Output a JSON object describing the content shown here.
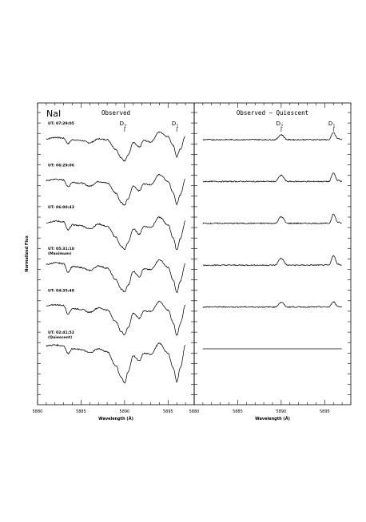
{
  "y_axis_label": "Normalized Flux",
  "x_axis_label": "Wavelength (Å)",
  "chart_data": [
    {
      "type": "line",
      "panel": "left",
      "title": "Observed",
      "element_label": "NaI",
      "xlabel": "Wavelength (Å)",
      "ylabel": "Normalized Flux",
      "xlim": [
        5880,
        5898
      ],
      "xticks": [
        "5880",
        "5885",
        "5890",
        "5895"
      ],
      "line_markers": [
        {
          "label": "D",
          "sub": "2",
          "x": 5890.0
        },
        {
          "label": "D",
          "sub": "1",
          "x": 5896.0
        }
      ],
      "series": [
        {
          "label": "UT: 07:29:05",
          "label2": "",
          "offset": 5,
          "x": [
            5881.0,
            5882.0,
            5883.0,
            5883.5,
            5884.0,
            5885.0,
            5886.0,
            5887.0,
            5888.0,
            5889.0,
            5889.6,
            5890.0,
            5890.4,
            5891.0,
            5891.7,
            5892.2,
            5893.0,
            5894.0,
            5895.0,
            5895.6,
            5896.0,
            5896.4,
            5897.0
          ],
          "y": [
            0.72,
            0.76,
            0.74,
            0.6,
            0.7,
            0.68,
            0.62,
            0.72,
            0.7,
            0.45,
            0.22,
            0.15,
            0.3,
            0.62,
            0.5,
            0.68,
            0.64,
            0.9,
            0.78,
            0.55,
            0.25,
            0.45,
            0.8
          ]
        },
        {
          "label": "UT: 06:29:06",
          "label2": "",
          "offset": 4,
          "x": [
            5881.0,
            5882.0,
            5883.0,
            5883.5,
            5884.0,
            5885.0,
            5886.0,
            5887.0,
            5888.0,
            5889.0,
            5889.6,
            5890.0,
            5890.4,
            5891.0,
            5891.7,
            5892.2,
            5893.0,
            5894.0,
            5895.0,
            5895.6,
            5896.0,
            5896.4,
            5897.0
          ],
          "y": [
            0.72,
            0.76,
            0.74,
            0.56,
            0.68,
            0.66,
            0.58,
            0.7,
            0.66,
            0.4,
            0.16,
            0.08,
            0.25,
            0.58,
            0.46,
            0.64,
            0.62,
            0.88,
            0.7,
            0.4,
            0.1,
            0.35,
            0.78
          ]
        },
        {
          "label": "UT: 06:00:43",
          "label2": "",
          "offset": 3,
          "x": [
            5881.0,
            5882.0,
            5883.0,
            5883.5,
            5884.0,
            5885.0,
            5886.0,
            5887.0,
            5888.0,
            5889.0,
            5889.6,
            5890.0,
            5890.4,
            5891.0,
            5891.7,
            5892.2,
            5893.0,
            5894.0,
            5895.0,
            5895.6,
            5896.0,
            5896.4,
            5897.0
          ],
          "y": [
            0.72,
            0.76,
            0.74,
            0.52,
            0.66,
            0.64,
            0.56,
            0.68,
            0.62,
            0.34,
            0.1,
            0.02,
            0.2,
            0.55,
            0.42,
            0.62,
            0.6,
            0.86,
            0.66,
            0.32,
            0.0,
            0.3,
            0.76
          ]
        },
        {
          "label": "UT: 05:31:18",
          "label2": "(Maximum)",
          "offset": 2,
          "x": [
            5881.0,
            5882.0,
            5883.0,
            5883.5,
            5884.0,
            5885.0,
            5886.0,
            5887.0,
            5888.0,
            5889.0,
            5889.6,
            5890.0,
            5890.4,
            5891.0,
            5891.7,
            5892.2,
            5893.0,
            5894.0,
            5895.0,
            5895.6,
            5896.0,
            5896.4,
            5897.0
          ],
          "y": [
            0.72,
            0.76,
            0.74,
            0.52,
            0.66,
            0.64,
            0.56,
            0.68,
            0.62,
            0.32,
            0.08,
            0.0,
            0.18,
            0.54,
            0.4,
            0.6,
            0.58,
            0.84,
            0.64,
            0.3,
            -0.02,
            0.28,
            0.76
          ]
        },
        {
          "label": "UT: 04:35:48",
          "label2": "",
          "offset": 1,
          "x": [
            5881.0,
            5882.0,
            5883.0,
            5883.5,
            5884.0,
            5885.0,
            5886.0,
            5887.0,
            5888.0,
            5889.0,
            5889.6,
            5890.0,
            5890.4,
            5891.0,
            5891.7,
            5892.2,
            5893.0,
            5894.0,
            5895.0,
            5895.6,
            5896.0,
            5896.4,
            5897.0
          ],
          "y": [
            0.72,
            0.76,
            0.74,
            0.52,
            0.66,
            0.64,
            0.56,
            0.68,
            0.62,
            0.32,
            0.06,
            -0.02,
            0.16,
            0.54,
            0.4,
            0.6,
            0.58,
            0.84,
            0.62,
            0.28,
            -0.04,
            0.26,
            0.76
          ]
        },
        {
          "label": "UT: 02:41:52",
          "label2": "(Quiescent)",
          "offset": 0,
          "x": [
            5881.0,
            5882.0,
            5883.0,
            5883.5,
            5884.0,
            5885.0,
            5886.0,
            5887.0,
            5888.0,
            5889.0,
            5889.6,
            5890.0,
            5890.4,
            5891.0,
            5891.7,
            5892.2,
            5893.0,
            5894.0,
            5895.0,
            5895.6,
            5896.0,
            5896.4,
            5897.0
          ],
          "y": [
            0.78,
            0.8,
            0.78,
            0.58,
            0.7,
            0.68,
            0.6,
            0.7,
            0.62,
            0.26,
            -0.04,
            -0.2,
            0.1,
            0.52,
            0.38,
            0.58,
            0.56,
            0.84,
            0.58,
            0.2,
            -0.16,
            0.2,
            0.8
          ]
        }
      ]
    },
    {
      "type": "line",
      "panel": "right",
      "title": "Observed − Quiescent",
      "xlabel": "Wavelength (Å)",
      "xlim": [
        5880,
        5898
      ],
      "xticks": [
        "5880",
        "5885",
        "5890",
        "5895"
      ],
      "line_markers": [
        {
          "label": "D",
          "sub": "2",
          "x": 5890.0
        },
        {
          "label": "D",
          "sub": "1",
          "x": 5896.0
        }
      ],
      "series": [
        {
          "offset": 5,
          "x": [
            5881.0,
            5889.3,
            5890.0,
            5890.7,
            5895.5,
            5896.0,
            5896.5,
            5897.0
          ],
          "y": [
            0.0,
            0.0,
            0.13,
            0.0,
            0.0,
            0.18,
            0.03,
            0.0
          ]
        },
        {
          "offset": 4,
          "x": [
            5881.0,
            5889.3,
            5890.0,
            5890.7,
            5895.5,
            5896.0,
            5896.5,
            5897.0
          ],
          "y": [
            0.0,
            0.0,
            0.16,
            0.0,
            0.0,
            0.22,
            0.03,
            0.0
          ]
        },
        {
          "offset": 3,
          "x": [
            5881.0,
            5889.3,
            5890.0,
            5890.7,
            5895.5,
            5896.0,
            5896.5,
            5897.0
          ],
          "y": [
            0.0,
            0.0,
            0.17,
            0.0,
            0.0,
            0.24,
            0.03,
            0.0
          ]
        },
        {
          "offset": 2,
          "x": [
            5881.0,
            5889.3,
            5890.0,
            5890.7,
            5895.5,
            5896.0,
            5896.5,
            5897.0
          ],
          "y": [
            0.0,
            0.0,
            0.18,
            0.0,
            0.0,
            0.25,
            0.03,
            0.0
          ]
        },
        {
          "offset": 1,
          "x": [
            5881.0,
            5889.3,
            5890.0,
            5890.7,
            5895.5,
            5896.0,
            5896.5,
            5897.0
          ],
          "y": [
            0.0,
            0.0,
            0.12,
            0.0,
            0.0,
            0.14,
            0.02,
            0.0
          ]
        },
        {
          "offset": 0,
          "x": [
            5881.0,
            5897.0
          ],
          "y": [
            0.0,
            0.0
          ]
        }
      ]
    }
  ]
}
